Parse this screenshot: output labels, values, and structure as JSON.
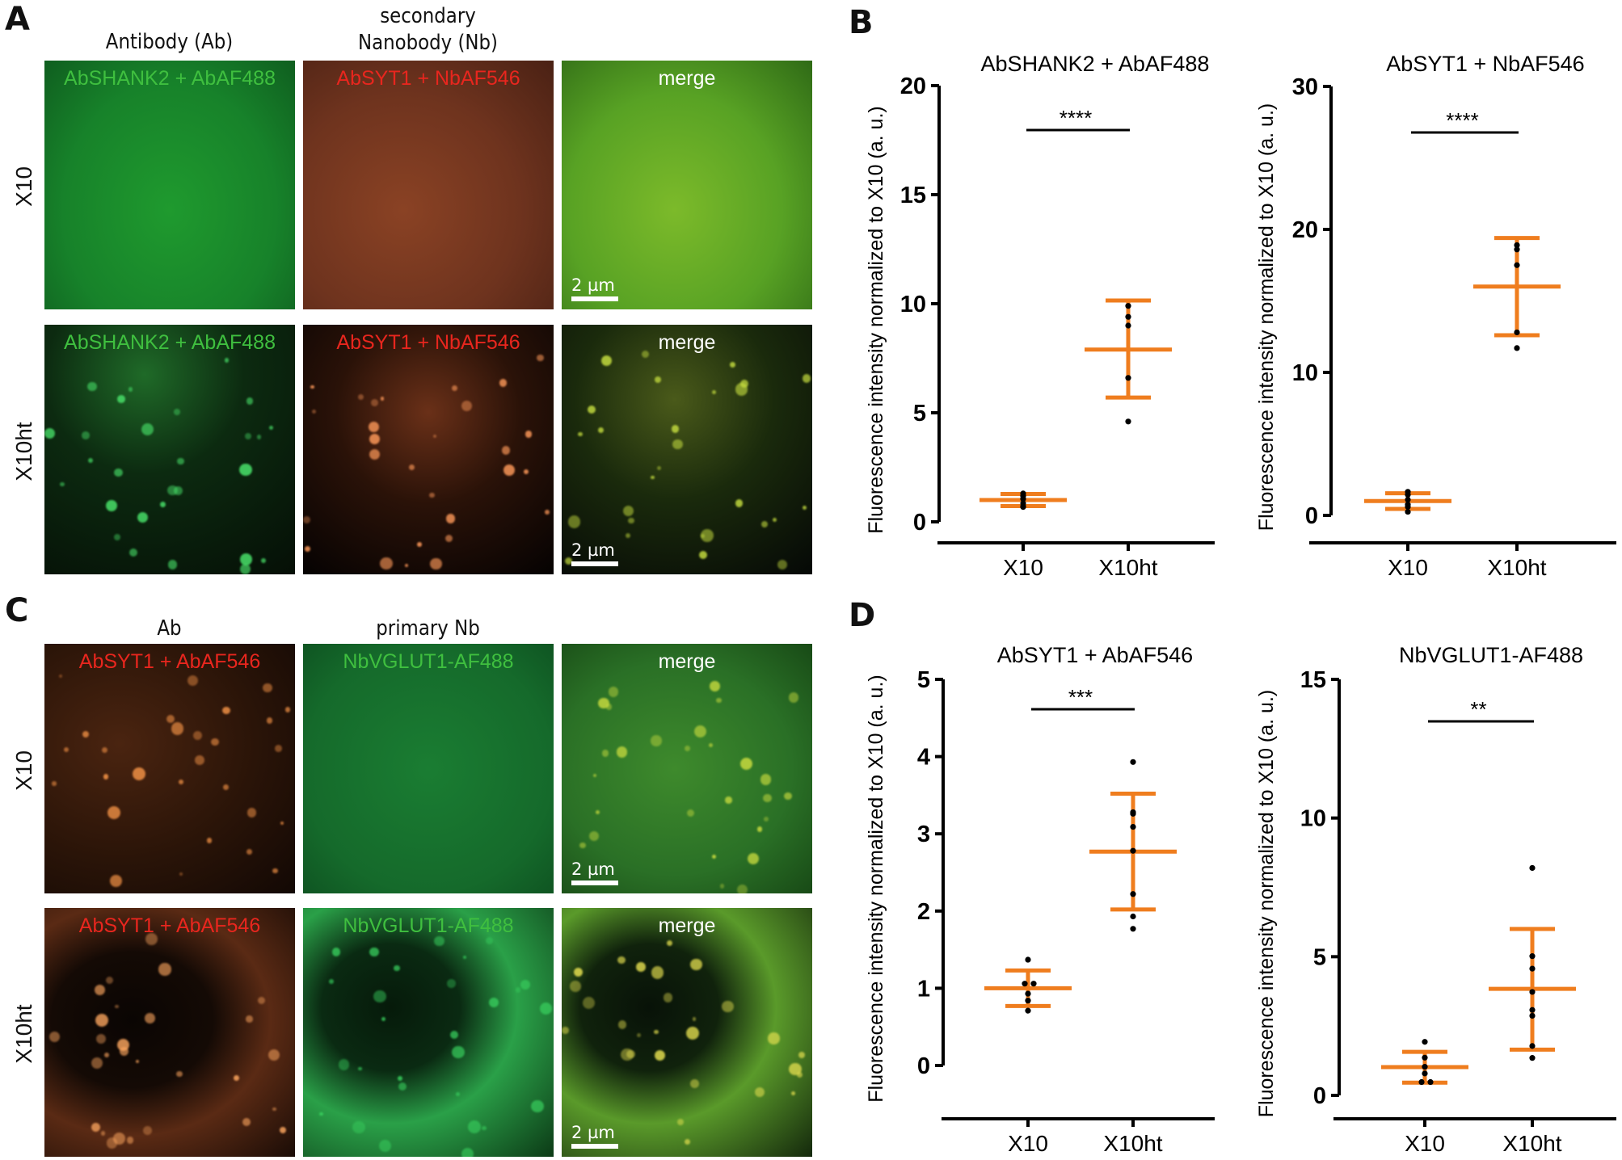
{
  "panels": {
    "A": {
      "letter": "A",
      "col_heads": [
        "Antibody (Ab)",
        "secondary\nNanobody (Nb)"
      ],
      "row_labels": [
        "X10",
        "X10ht"
      ],
      "images": [
        {
          "caption": "AbSHANK2 + AbAF488",
          "caption_color": "#3fbf3f",
          "style": "green-flat"
        },
        {
          "caption": "AbSYT1 + NbAF546",
          "caption_color": "#e8261e",
          "style": "red-flat"
        },
        {
          "caption": "merge",
          "caption_color": "#ffffff",
          "style": "merge-flat",
          "scale_bar": "2 µm"
        },
        {
          "caption": "AbSHANK2 + AbAF488",
          "caption_color": "#3fbf3f",
          "style": "green-punct"
        },
        {
          "caption": "AbSYT1 + NbAF546",
          "caption_color": "#e8261e",
          "style": "red-punct"
        },
        {
          "caption": "merge",
          "caption_color": "#ffffff",
          "style": "merge-punct",
          "scale_bar": "2 µm"
        }
      ]
    },
    "C": {
      "letter": "C",
      "col_heads": [
        "Ab",
        "primary Nb"
      ],
      "row_labels": [
        "X10",
        "X10ht"
      ],
      "images": [
        {
          "caption": "AbSYT1 + AbAF546",
          "caption_color": "#e8261e",
          "style": "red-dim"
        },
        {
          "caption": "NbVGLUT1-AF488",
          "caption_color": "#3fbf3f",
          "style": "green-flat2"
        },
        {
          "caption": "merge",
          "caption_color": "#ffffff",
          "style": "merge-dim",
          "scale_bar": "2 µm"
        },
        {
          "caption": "AbSYT1 + AbAF546",
          "caption_color": "#e8261e",
          "style": "red-cells"
        },
        {
          "caption": "NbVGLUT1-AF488",
          "caption_color": "#3fbf3f",
          "style": "green-cells"
        },
        {
          "caption": "merge",
          "caption_color": "#ffffff",
          "style": "merge-cells",
          "scale_bar": "2 µm"
        }
      ]
    },
    "B": {
      "letter": "B"
    },
    "D": {
      "letter": "D"
    }
  },
  "colors": {
    "error_bar": "#ef7d1e",
    "point": "#000000",
    "axis": "#000000"
  },
  "chart_data": [
    {
      "panel": "B",
      "type": "scatter",
      "title": "AbSHANK2 + AbAF488",
      "ylabel": "Fluorescence intensity normalized to X10 (a. u.)",
      "xlabel": "",
      "categories": [
        "X10",
        "X10ht"
      ],
      "ylim": [
        0,
        20
      ],
      "yticks": [
        0,
        5,
        10,
        15,
        20
      ],
      "significance": "****",
      "series": [
        {
          "name": "X10",
          "mean": 1.0,
          "sd_low": 0.72,
          "sd_high": 1.28,
          "points": [
            0.68,
            0.72,
            0.85,
            1.05,
            1.18,
            1.3
          ]
        },
        {
          "name": "X10ht",
          "mean": 7.9,
          "sd_low": 5.7,
          "sd_high": 10.15,
          "points": [
            9.9,
            9.4,
            9.0,
            6.6,
            4.6
          ]
        }
      ]
    },
    {
      "panel": "B",
      "type": "scatter",
      "title": "AbSYT1 + NbAF546",
      "ylabel": "Fluorescence intensity normalized to X10 (a. u.)",
      "xlabel": "",
      "categories": [
        "X10",
        "X10ht"
      ],
      "ylim": [
        0,
        30
      ],
      "yticks": [
        0,
        10,
        20,
        30
      ],
      "significance": "****",
      "series": [
        {
          "name": "X10",
          "mean": 1.0,
          "sd_low": 0.45,
          "sd_high": 1.55,
          "points": [
            0.25,
            0.6,
            0.75,
            1.1,
            1.45,
            1.65
          ]
        },
        {
          "name": "X10ht",
          "mean": 16.0,
          "sd_low": 12.6,
          "sd_high": 19.4,
          "points": [
            18.9,
            18.6,
            17.5,
            12.8,
            11.7
          ]
        }
      ]
    },
    {
      "panel": "D",
      "type": "scatter",
      "title": "AbSYT1 + AbAF546",
      "ylabel": "Fluorescence intensity normalized to X10 (a. u.)",
      "xlabel": "",
      "categories": [
        "X10",
        "X10ht"
      ],
      "ylim": [
        0,
        5
      ],
      "yticks": [
        0,
        1,
        2,
        3,
        4,
        5
      ],
      "significance": "***",
      "series": [
        {
          "name": "X10",
          "mean": 1.0,
          "sd_low": 0.77,
          "sd_high": 1.23,
          "points": [
            1.37,
            1.06,
            1.06,
            0.93,
            0.84,
            0.71
          ]
        },
        {
          "name": "X10ht",
          "mean": 2.77,
          "sd_low": 2.02,
          "sd_high": 3.52,
          "points": [
            3.93,
            3.28,
            3.26,
            3.09,
            2.78,
            2.22,
            1.93,
            1.77
          ]
        }
      ]
    },
    {
      "panel": "D",
      "type": "scatter",
      "title": "NbVGLUT1-AF488",
      "ylabel": "Fluorescence intensity normalized to X10 (a. u.)",
      "xlabel": "",
      "categories": [
        "X10",
        "X10ht"
      ],
      "ylim": [
        0,
        15
      ],
      "yticks": [
        0,
        5,
        10,
        15
      ],
      "significance": "**",
      "series": [
        {
          "name": "X10",
          "mean": 1.02,
          "sd_low": 0.46,
          "sd_high": 1.57,
          "points": [
            1.93,
            1.36,
            1.03,
            0.79,
            0.48,
            0.48
          ]
        },
        {
          "name": "X10ht",
          "mean": 3.84,
          "sd_low": 1.65,
          "sd_high": 6.0,
          "points": [
            8.2,
            5.02,
            4.57,
            3.73,
            3.08,
            2.87,
            1.78,
            1.35
          ]
        }
      ]
    }
  ]
}
